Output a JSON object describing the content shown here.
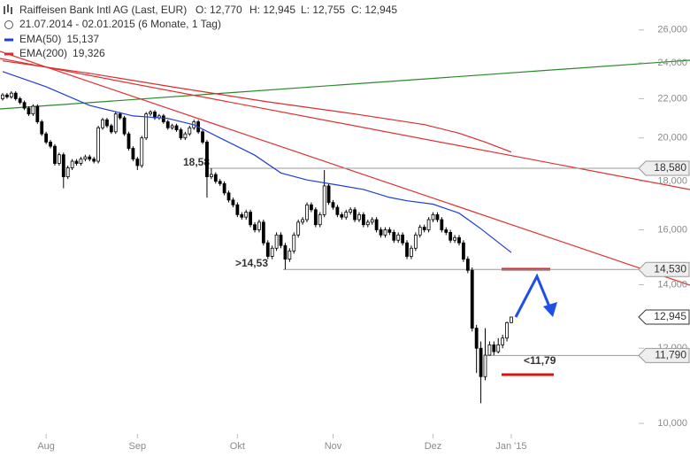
{
  "header": {
    "title": "Raiffeisen Bank Intl AG (Last, EUR)",
    "open": "O: 12,770",
    "high": "H: 12,945",
    "low": "L: 12,755",
    "close": "C: 12,945",
    "period": "21.07.2014 - 02.01.2015 (6 Monate, 1 Tag)"
  },
  "chart_data": {
    "type": "candlestick",
    "log": true,
    "up_color": "#ffffff",
    "down_color": "#000000",
    "xlim": [
      -0.61,
      145.9
    ],
    "xticks": [
      {
        "value": 10,
        "label": "Aug"
      },
      {
        "value": 31,
        "label": "Sep"
      },
      {
        "value": 54,
        "label": "Okt"
      },
      {
        "value": 76,
        "label": "Nov"
      },
      {
        "value": 99,
        "label": "Dez"
      },
      {
        "value": 117,
        "label": "Jan '15"
      }
    ],
    "ylim": [
      9640,
      27960
    ],
    "yticks": [
      {
        "value": 10000,
        "label": "10,000"
      },
      {
        "value": 12000,
        "label": "12,000"
      },
      {
        "value": 14000,
        "label": "14,000"
      },
      {
        "value": 16000,
        "label": "16,000"
      },
      {
        "value": 18000,
        "label": "18,000"
      },
      {
        "value": 20000,
        "label": "20,000"
      },
      {
        "value": 22000,
        "label": "22,000"
      },
      {
        "value": 24000,
        "label": "24,000"
      },
      {
        "value": 26000,
        "label": "26,000"
      }
    ],
    "x": [
      0,
      1,
      2,
      3,
      4,
      5,
      6,
      7,
      8,
      9,
      10,
      11,
      12,
      13,
      14,
      15,
      16,
      17,
      18,
      19,
      20,
      21,
      22,
      23,
      24,
      25,
      26,
      27,
      28,
      29,
      30,
      31,
      32,
      33,
      34,
      35,
      36,
      37,
      38,
      39,
      40,
      41,
      42,
      43,
      44,
      45,
      46,
      47,
      48,
      49,
      50,
      51,
      52,
      53,
      54,
      55,
      56,
      57,
      58,
      59,
      60,
      61,
      62,
      63,
      64,
      65,
      66,
      67,
      68,
      69,
      70,
      71,
      72,
      73,
      74,
      75,
      76,
      77,
      78,
      79,
      80,
      81,
      82,
      83,
      84,
      85,
      86,
      87,
      88,
      89,
      90,
      91,
      92,
      93,
      94,
      95,
      96,
      97,
      98,
      99,
      100,
      101,
      102,
      103,
      104,
      105,
      106,
      107,
      108,
      109,
      110,
      111,
      112,
      113,
      114,
      115,
      116,
      117
    ],
    "candles": {
      "open": [
        22000,
        22200,
        22100,
        22300,
        22000,
        21800,
        21500,
        21200,
        21600,
        20800,
        20200,
        19800,
        19600,
        18800,
        19200,
        18200,
        18600,
        18900,
        18800,
        19000,
        19100,
        19000,
        18900,
        20500,
        20900,
        20600,
        20300,
        21200,
        21000,
        20200,
        19500,
        19000,
        18700,
        20000,
        21200,
        21300,
        21000,
        21100,
        20800,
        20500,
        20600,
        20400,
        20000,
        20200,
        20500,
        20800,
        20300,
        19800,
        18200,
        18300,
        18000,
        17900,
        17500,
        17200,
        17000,
        16600,
        16500,
        16700,
        16200,
        16000,
        16300,
        15500,
        15000,
        15300,
        15800,
        15400,
        14900,
        15200,
        15800,
        16300,
        16400,
        17000,
        16800,
        16200,
        16600,
        17800,
        17100,
        16900,
        16600,
        16500,
        16700,
        16800,
        16400,
        16600,
        16200,
        16300,
        16400,
        16000,
        15800,
        16000,
        15900,
        15600,
        15800,
        15500,
        15000,
        15300,
        15800,
        16100,
        16000,
        16400,
        16600,
        16400,
        16000,
        15900,
        15600,
        15700,
        15500,
        14900,
        14500,
        12600,
        12000,
        11200,
        11800,
        12100,
        11900,
        12100,
        12300,
        12770
      ],
      "high": [
        22300,
        22300,
        22400,
        22400,
        22100,
        21900,
        21600,
        21700,
        21700,
        20900,
        20300,
        19900,
        19700,
        19300,
        19300,
        18700,
        19000,
        19000,
        19100,
        19200,
        19200,
        19100,
        20600,
        21000,
        21000,
        20700,
        21300,
        21300,
        21100,
        20300,
        19600,
        19100,
        20100,
        21300,
        21400,
        21400,
        21200,
        21200,
        20900,
        20700,
        20700,
        20500,
        20300,
        20600,
        20900,
        20900,
        20400,
        19900,
        18580,
        18400,
        18100,
        18000,
        17600,
        17300,
        17100,
        16700,
        16800,
        16800,
        16300,
        16400,
        16400,
        15600,
        15400,
        15900,
        15900,
        15500,
        15300,
        15900,
        16400,
        16500,
        17100,
        17100,
        16900,
        16700,
        18500,
        17900,
        17200,
        17000,
        16700,
        16800,
        16900,
        16900,
        16700,
        16700,
        16400,
        16500,
        16500,
        16100,
        16100,
        16100,
        16000,
        15900,
        15900,
        15600,
        15400,
        15900,
        16200,
        16200,
        16500,
        16700,
        16700,
        16500,
        16100,
        16000,
        15800,
        15800,
        15600,
        15000,
        14600,
        12700,
        12200,
        12600,
        12200,
        12200,
        12300,
        12400,
        12800,
        12945
      ],
      "low": [
        21900,
        22000,
        22000,
        21900,
        21700,
        21400,
        21100,
        21100,
        20700,
        20100,
        19700,
        19500,
        18700,
        18700,
        17700,
        18100,
        18500,
        18700,
        18700,
        18900,
        18900,
        18800,
        18800,
        20400,
        20500,
        20200,
        20200,
        20900,
        20100,
        19400,
        18900,
        18500,
        18600,
        19900,
        21100,
        20900,
        20900,
        20700,
        20400,
        20400,
        20300,
        19900,
        19900,
        20100,
        20400,
        20200,
        19700,
        17300,
        18100,
        17900,
        17800,
        17400,
        17100,
        16900,
        16500,
        16400,
        16400,
        16100,
        15900,
        15900,
        15400,
        14900,
        14900,
        15200,
        15300,
        14530,
        14800,
        15100,
        15700,
        16200,
        16300,
        16700,
        16100,
        16100,
        16500,
        17000,
        16800,
        16500,
        16400,
        16400,
        16600,
        16300,
        16300,
        16100,
        16100,
        16200,
        15900,
        15700,
        15700,
        15800,
        15500,
        15500,
        15400,
        14900,
        14900,
        15200,
        15700,
        15900,
        15900,
        16300,
        16300,
        15900,
        15800,
        15500,
        15500,
        15400,
        14800,
        14400,
        12500,
        11300,
        10500,
        11100,
        11790,
        11800,
        11850,
        12000,
        12200,
        12755
      ],
      "close": [
        22200,
        22100,
        22300,
        22000,
        21800,
        21500,
        21200,
        21600,
        20800,
        20200,
        19800,
        19600,
        18800,
        19200,
        18200,
        18600,
        18900,
        18800,
        19000,
        19100,
        19000,
        18900,
        20500,
        20900,
        20600,
        20300,
        21200,
        21000,
        20200,
        19500,
        19000,
        18700,
        20000,
        21200,
        21300,
        21000,
        21100,
        20800,
        20500,
        20600,
        20400,
        20000,
        20200,
        20500,
        20800,
        20300,
        19800,
        18200,
        18300,
        18000,
        17900,
        17500,
        17200,
        17000,
        16600,
        16500,
        16700,
        16200,
        16000,
        16300,
        15500,
        15000,
        15300,
        15800,
        15400,
        14900,
        15200,
        15800,
        16300,
        16400,
        17000,
        16800,
        16200,
        16600,
        17800,
        17100,
        16900,
        16600,
        16500,
        16700,
        16800,
        16400,
        16600,
        16200,
        16300,
        16400,
        16000,
        15800,
        16000,
        15900,
        15600,
        15800,
        15500,
        15000,
        15300,
        15800,
        16100,
        16000,
        16400,
        16600,
        16400,
        16000,
        15900,
        15600,
        15700,
        15500,
        14900,
        14500,
        12600,
        12000,
        11200,
        11800,
        12100,
        11900,
        12100,
        12300,
        12770,
        12945
      ]
    },
    "series": [
      {
        "name": "EMA(50)",
        "last": "15,137",
        "color": "#1f3dd8",
        "x": [
          0,
          10,
          20,
          30,
          38,
          44,
          50,
          58,
          64,
          70,
          77,
          83,
          89,
          93,
          99,
          105,
          110,
          117
        ],
        "values": [
          23500,
          22650,
          21640,
          21100,
          20970,
          20650,
          20000,
          19180,
          18370,
          18060,
          17840,
          17650,
          17310,
          17170,
          17030,
          16660,
          16040,
          15137
        ]
      },
      {
        "name": "EMA(200)",
        "last": "19,326",
        "color": "#e02a2a",
        "x": [
          0,
          20,
          40,
          61,
          81,
          97,
          105,
          111,
          117
        ],
        "values": [
          24120,
          23400,
          22600,
          21830,
          21200,
          20660,
          20230,
          19800,
          19326
        ]
      }
    ],
    "levels": [
      {
        "value": 18580,
        "label": "18,58",
        "tag": "18,580"
      },
      {
        "value": 14530,
        "label": ">14,53",
        "tag": "14,530"
      },
      {
        "value": 11790,
        "label": "<11,79",
        "tag": "11,790"
      }
    ],
    "price_tag": {
      "value": 12945,
      "label": "12,945"
    }
  }
}
